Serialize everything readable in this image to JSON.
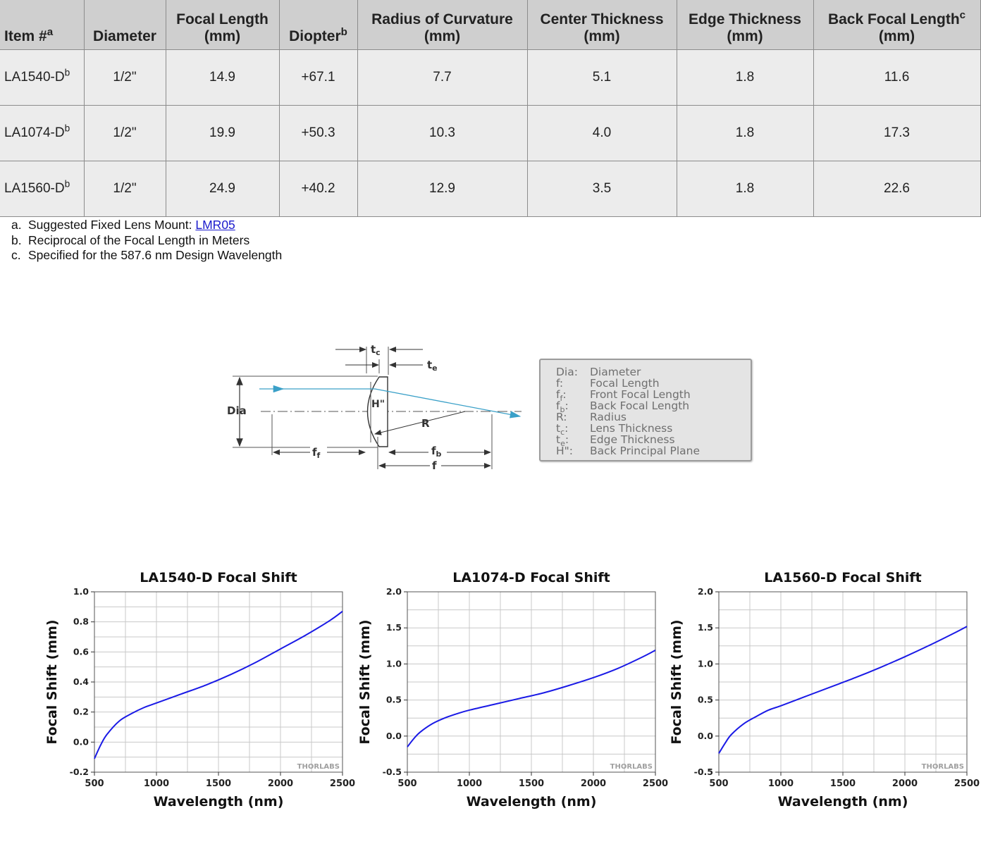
{
  "table": {
    "headers": [
      {
        "text": "Item #",
        "sup": "a"
      },
      {
        "text": "Diameter",
        "sup": ""
      },
      {
        "line1": "Focal Length",
        "line2": "(mm)"
      },
      {
        "text": "Diopter",
        "sup": "b"
      },
      {
        "line1": "Radius of Curvature",
        "line2": "(mm)"
      },
      {
        "line1": "Center Thickness",
        "line2": "(mm)"
      },
      {
        "line1": "Edge Thickness",
        "line2": "(mm)"
      },
      {
        "line1": "Back Focal Length",
        "sup": "c",
        "line2": "(mm)"
      }
    ],
    "rows": [
      {
        "item": "LA1540-D",
        "item_sup": "b",
        "diameter": "1/2\"",
        "focal": "14.9",
        "diopter": "+67.1",
        "radius": "7.7",
        "center": "5.1",
        "edge": "1.8",
        "bfl": "11.6"
      },
      {
        "item": "LA1074-D",
        "item_sup": "b",
        "diameter": "1/2\"",
        "focal": "19.9",
        "diopter": "+50.3",
        "radius": "10.3",
        "center": "4.0",
        "edge": "1.8",
        "bfl": "17.3"
      },
      {
        "item": "LA1560-D",
        "item_sup": "b",
        "diameter": "1/2\"",
        "focal": "24.9",
        "diopter": "+40.2",
        "radius": "12.9",
        "center": "3.5",
        "edge": "1.8",
        "bfl": "22.6"
      }
    ]
  },
  "footnotes": [
    {
      "key": "a.",
      "text": "Suggested Fixed Lens Mount: ",
      "link": "LMR05"
    },
    {
      "key": "b.",
      "text": "Reciprocal of the Focal Length in Meters",
      "link": ""
    },
    {
      "key": "c.",
      "text": "Specified for the 587.6 nm Design Wavelength",
      "link": ""
    }
  ],
  "diagram": {
    "labels": {
      "dia": "Dia",
      "tc": "t",
      "tc_sub": "c",
      "te": "t",
      "te_sub": "e",
      "h": "H\"",
      "r": "R",
      "ff": "f",
      "ff_sub": "f",
      "fb": "f",
      "fb_sub": "b",
      "f": "f"
    },
    "colors": {
      "ray": "#3aa0c8",
      "lines": "#333333"
    },
    "legend": [
      {
        "key": "Dia:",
        "text": "Diameter"
      },
      {
        "key": "f:",
        "text": "Focal Length"
      },
      {
        "key": "f",
        "sub": "f",
        "tail": ":",
        "text": "Front Focal Length"
      },
      {
        "key": "f",
        "sub": "b",
        "tail": ":",
        "text": "Back Focal Length"
      },
      {
        "key": "R:",
        "text": "Radius"
      },
      {
        "key": "t",
        "sub": "c",
        "tail": ":",
        "text": "Lens Thickness"
      },
      {
        "key": "t",
        "sub": "e",
        "tail": ":",
        "text": "Edge Thickness"
      },
      {
        "key": "H\":",
        "text": "Back Principal Plane"
      }
    ]
  },
  "chart_data": [
    {
      "type": "line",
      "title": "LA1540-D Focal Shift",
      "xlabel": "Wavelength (nm)",
      "ylabel": "Focal Shift (mm)",
      "xlim": [
        500,
        2500
      ],
      "ylim": [
        -0.2,
        1.0
      ],
      "xticks": [
        500,
        1000,
        1500,
        2000,
        2500
      ],
      "yticks": [
        "-0.2",
        "0.0",
        "0.2",
        "0.4",
        "0.6",
        "0.8",
        "1.0"
      ],
      "grid": true,
      "watermark": "THORLABS",
      "series_color": "#1a1ae6",
      "x": [
        500,
        550,
        600,
        700,
        800,
        900,
        1000,
        1200,
        1400,
        1600,
        1800,
        2000,
        2200,
        2400,
        2500
      ],
      "y": [
        -0.11,
        -0.02,
        0.05,
        0.14,
        0.19,
        0.23,
        0.26,
        0.32,
        0.38,
        0.45,
        0.53,
        0.62,
        0.71,
        0.81,
        0.87
      ]
    },
    {
      "type": "line",
      "title": "LA1074-D Focal Shift",
      "xlabel": "Wavelength (nm)",
      "ylabel": "Focal Shift (mm)",
      "xlim": [
        500,
        2500
      ],
      "ylim": [
        -0.5,
        2.0
      ],
      "xticks": [
        500,
        1000,
        1500,
        2000,
        2500
      ],
      "yticks": [
        "-0.5",
        "0.0",
        "0.5",
        "1.0",
        "1.5",
        "2.0"
      ],
      "grid": true,
      "watermark": "THORLABS",
      "series_color": "#1a1ae6",
      "x": [
        500,
        550,
        600,
        700,
        800,
        900,
        1000,
        1200,
        1400,
        1600,
        1800,
        2000,
        2200,
        2400,
        2500
      ],
      "y": [
        -0.15,
        -0.04,
        0.05,
        0.17,
        0.25,
        0.31,
        0.36,
        0.44,
        0.52,
        0.6,
        0.7,
        0.81,
        0.94,
        1.1,
        1.19
      ]
    },
    {
      "type": "line",
      "title": "LA1560-D Focal Shift",
      "xlabel": "Wavelength (nm)",
      "ylabel": "Focal Shift (mm)",
      "xlim": [
        500,
        2500
      ],
      "ylim": [
        -0.5,
        2.0
      ],
      "xticks": [
        500,
        1000,
        1500,
        2000,
        2500
      ],
      "yticks": [
        "-0.5",
        "0.0",
        "0.5",
        "1.0",
        "1.5",
        "2.0"
      ],
      "grid": true,
      "watermark": "THORLABS",
      "series_color": "#1a1ae6",
      "x": [
        500,
        550,
        600,
        700,
        800,
        900,
        1000,
        1200,
        1400,
        1600,
        1800,
        2000,
        2200,
        2400,
        2500
      ],
      "y": [
        -0.24,
        -0.1,
        0.02,
        0.17,
        0.27,
        0.36,
        0.42,
        0.55,
        0.68,
        0.81,
        0.95,
        1.1,
        1.26,
        1.43,
        1.52
      ]
    }
  ]
}
